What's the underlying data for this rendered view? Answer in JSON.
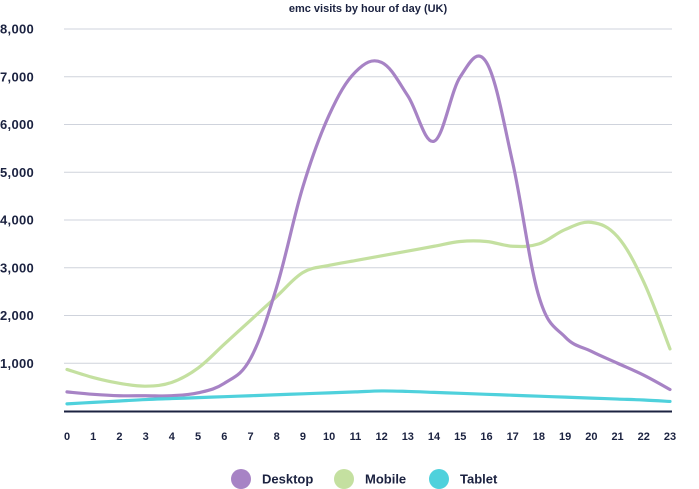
{
  "chart_data": {
    "type": "line",
    "title": "emc visits by hour of day (UK)",
    "xlabel": "",
    "ylabel": "",
    "x": [
      0,
      1,
      2,
      3,
      4,
      5,
      6,
      7,
      8,
      9,
      10,
      11,
      12,
      13,
      14,
      15,
      16,
      17,
      18,
      19,
      20,
      21,
      22,
      23
    ],
    "x_ticks": [
      "0",
      "1",
      "2",
      "3",
      "4",
      "5",
      "6",
      "7",
      "8",
      "9",
      "10",
      "11",
      "12",
      "13",
      "14",
      "15",
      "16",
      "17",
      "18",
      "19",
      "20",
      "21",
      "22",
      "23"
    ],
    "ylim": [
      0,
      8000
    ],
    "y_ticks": [
      1000,
      2000,
      3000,
      4000,
      5000,
      6000,
      7000,
      8000
    ],
    "y_tick_labels": [
      "1,000",
      "2,000",
      "3,000",
      "4,000",
      "5,000",
      "6,000",
      "7,000",
      "8,000"
    ],
    "grid": "horizontal",
    "legend_position": "bottom",
    "series": [
      {
        "name": "Desktop",
        "color": "#a783c5",
        "values": [
          400,
          350,
          320,
          320,
          320,
          380,
          580,
          1100,
          2600,
          4700,
          6200,
          7100,
          7300,
          6600,
          5650,
          7000,
          7300,
          5200,
          2400,
          1550,
          1250,
          1000,
          750,
          450
        ]
      },
      {
        "name": "Mobile",
        "color": "#c4e0a0",
        "values": [
          870,
          700,
          580,
          520,
          600,
          900,
          1400,
          1900,
          2400,
          2900,
          3050,
          3150,
          3250,
          3350,
          3450,
          3550,
          3550,
          3450,
          3500,
          3800,
          3950,
          3650,
          2700,
          1300
        ]
      },
      {
        "name": "Tablet",
        "color": "#4fd1dc",
        "values": [
          150,
          180,
          210,
          240,
          260,
          280,
          300,
          320,
          340,
          360,
          380,
          400,
          420,
          410,
          390,
          370,
          350,
          330,
          310,
          290,
          270,
          250,
          230,
          200
        ]
      }
    ]
  }
}
